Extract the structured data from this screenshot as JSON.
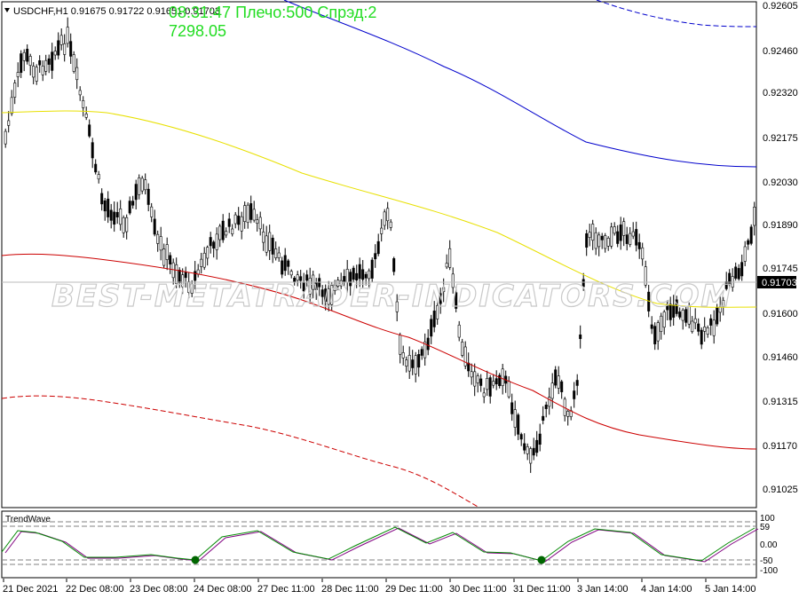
{
  "symbol_header": "USDCHF,H1  0.91675 0.91722 0.91651 0.91703",
  "hud": {
    "line1": "08:31:47 Плечо:500 Спрэд:2",
    "line2": "7298.05"
  },
  "watermark": "BEST-METATRADER-INDICATORS.COM",
  "price_axis": [
    "0.92605",
    "0.92460",
    "0.92320",
    "0.92175",
    "0.92030",
    "0.91890",
    "0.91745",
    "0.91600",
    "0.91460",
    "0.91315",
    "0.91170",
    "0.91025"
  ],
  "current_price": "0.91703",
  "indicator": {
    "name": "TrendWave",
    "levels": [
      "100",
      "59",
      "0.00",
      "-50",
      "-100"
    ],
    "top_level_alt": "60"
  },
  "time_axis": [
    "21 Dec 2021",
    "22 Dec 08:00",
    "23 Dec 08:00",
    "24 Dec 08:00",
    "27 Dec 11:00",
    "28 Dec 11:00",
    "29 Dec 11:00",
    "30 Dec 11:00",
    "31 Dec 11:00",
    "3 Jan 14:00",
    "4 Jan 14:00",
    "5 Jan 14:00"
  ],
  "colors": {
    "upper_band": "#0000cc",
    "middle_ma": "#f0e000",
    "lower_ma": "#cc0000",
    "hud_text": "#22dd22",
    "wave_green": "#008800",
    "wave_purple": "#800080",
    "marker": "#006600"
  }
}
